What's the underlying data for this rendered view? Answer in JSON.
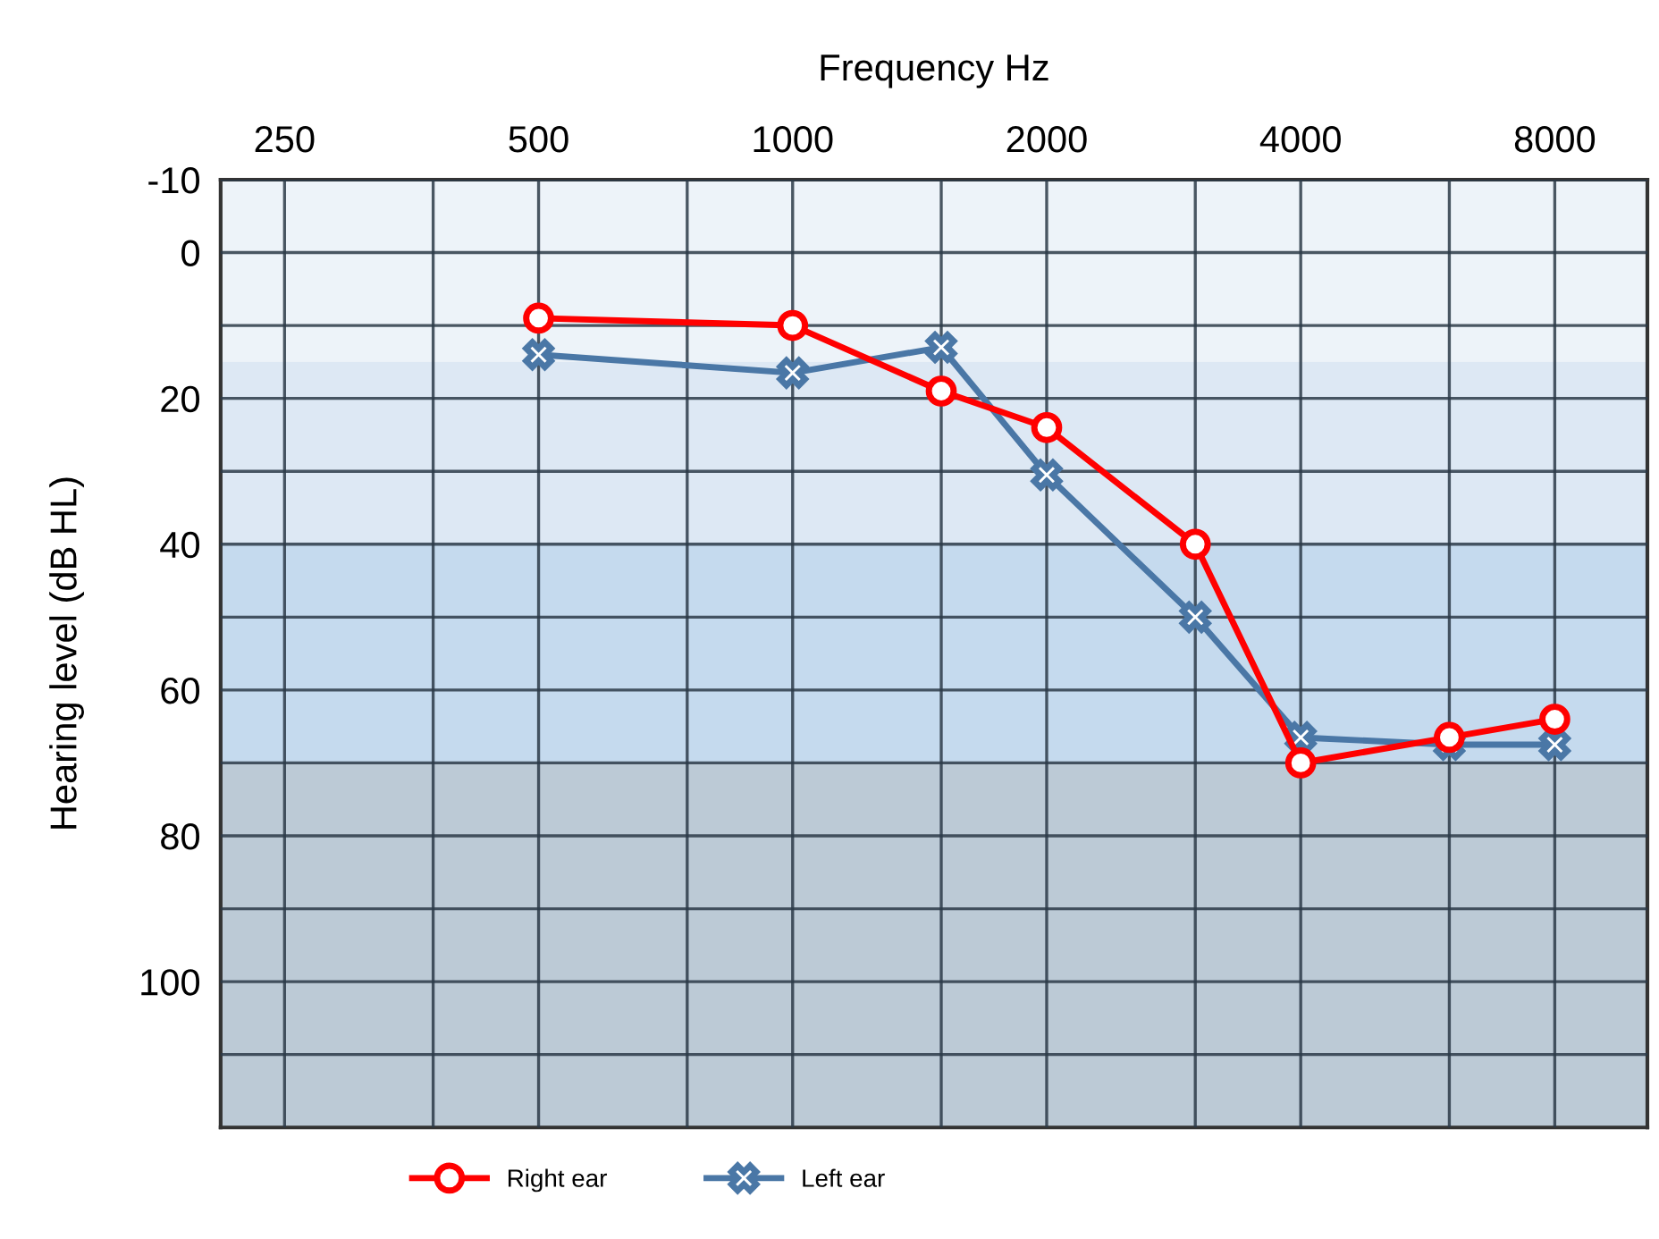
{
  "chart_data": {
    "type": "line",
    "xlabel": "Frequency Hz",
    "ylabel": "Hearing level (dB HL)",
    "log": "x",
    "xlim": [
      210,
      10300
    ],
    "xticks": [
      250,
      {
        "value": 375,
        "label": null
      },
      500,
      {
        "value": 750,
        "label": null
      },
      1000,
      {
        "value": 1500,
        "label": null
      },
      2000,
      {
        "value": 3000,
        "label": null
      },
      4000,
      {
        "value": 6000,
        "label": null
      },
      8000
    ],
    "ylim": [
      120,
      -10
    ],
    "yticks": [
      -10,
      0,
      {
        "value": 10,
        "label": null
      },
      20,
      {
        "value": 30,
        "label": null
      },
      40,
      {
        "value": 50,
        "label": null
      },
      60,
      {
        "value": 70,
        "label": null
      },
      80,
      {
        "value": 90,
        "label": null
      },
      100,
      {
        "value": 110,
        "label": null
      }
    ],
    "grid": true,
    "legend": "bottom",
    "bands": [
      {
        "axis": "y",
        "from": -10,
        "to": 15,
        "color": "#edf3f9"
      },
      {
        "axis": "y",
        "from": 15,
        "to": 40,
        "color": "#dde8f4"
      },
      {
        "axis": "y",
        "from": 40,
        "to": 70,
        "color": "#c5daee"
      },
      {
        "axis": "y",
        "from": 70,
        "to": 120,
        "color": "#bccad6"
      }
    ],
    "series": [
      {
        "name": "Right ear",
        "color": "#ff0000",
        "marker": "circle",
        "x": [
          500,
          1000,
          1500,
          2000,
          3000,
          4000,
          6000,
          8000
        ],
        "values": [
          9,
          10,
          19,
          24,
          40,
          70,
          66.5,
          64
        ]
      },
      {
        "name": "Left ear",
        "color": "#4a77a6",
        "marker": "cross",
        "x": [
          500,
          1000,
          1500,
          2000,
          3000,
          4000,
          6000,
          8000
        ],
        "values": [
          14,
          16.5,
          13,
          30.5,
          50,
          66.5,
          67.5,
          67.5
        ]
      }
    ]
  }
}
